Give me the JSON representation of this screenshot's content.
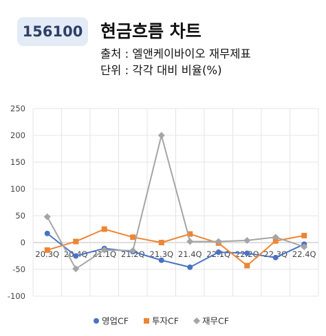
{
  "header": {
    "code": "156100",
    "title": "현금흐름 차트",
    "source": "출처 : 엘앤케이바이오 재무제표",
    "unit": "단위 : 각각 대비 비율(%)"
  },
  "chart_data": {
    "type": "line",
    "categories": [
      "20.3Q",
      "20.4Q",
      "21.1Q",
      "21.2Q",
      "21.3Q",
      "21.4Q",
      "22.1Q",
      "22.2Q",
      "22.3Q",
      "22.4Q"
    ],
    "series": [
      {
        "name": "영업CF",
        "color": "#4a72c4",
        "marker": "circle",
        "values": [
          17,
          -25,
          -11,
          -17,
          -33,
          -46,
          -18,
          -20,
          -28,
          -3
        ]
      },
      {
        "name": "투자CF",
        "color": "#ee8533",
        "marker": "square",
        "values": [
          -14,
          2,
          25,
          10,
          0,
          16,
          -1,
          -43,
          3,
          13
        ]
      },
      {
        "name": "재무CF",
        "color": "#a5a5a5",
        "marker": "diamond",
        "values": [
          48,
          -49,
          -14,
          -15,
          200,
          2,
          2,
          4,
          10,
          -8
        ]
      }
    ],
    "yticks": [
      250,
      200,
      150,
      100,
      50,
      0,
      -50,
      -100
    ],
    "ylim": [
      -100,
      250
    ],
    "grid": true,
    "legend": "bottom"
  }
}
